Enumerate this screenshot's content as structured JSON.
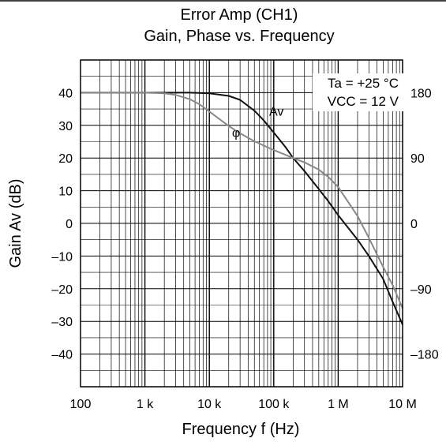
{
  "chart_data": {
    "type": "line",
    "title": "Error Amp (CH1)",
    "subtitle": "Gain, Phase vs. Frequency",
    "xlabel": "Frequency f (Hz)",
    "ylabel": "Gain Av (dB)",
    "y2label": "",
    "x_scale": "log",
    "xlim": [
      100,
      10000000
    ],
    "ylim": [
      -50,
      50
    ],
    "y2lim": [
      -225,
      225
    ],
    "grid": true,
    "x_ticks": [
      {
        "value": 100,
        "label": "100"
      },
      {
        "value": 1000,
        "label": "1 k"
      },
      {
        "value": 10000,
        "label": "10 k"
      },
      {
        "value": 100000,
        "label": "100 k"
      },
      {
        "value": 1000000,
        "label": "1 M"
      },
      {
        "value": 10000000,
        "label": "10 M"
      }
    ],
    "y_ticks": [
      {
        "value": 40,
        "label": "40"
      },
      {
        "value": 30,
        "label": "30"
      },
      {
        "value": 20,
        "label": "20"
      },
      {
        "value": 10,
        "label": "10"
      },
      {
        "value": 0,
        "label": "0"
      },
      {
        "value": -10,
        "label": "–10"
      },
      {
        "value": -20,
        "label": "–20"
      },
      {
        "value": -30,
        "label": "–30"
      },
      {
        "value": -40,
        "label": "–40"
      }
    ],
    "y2_ticks": [
      {
        "value": 180,
        "label": "180"
      },
      {
        "value": 90,
        "label": "90"
      },
      {
        "value": 0,
        "label": "0"
      },
      {
        "value": -90,
        "label": "–90"
      },
      {
        "value": -180,
        "label": "–180"
      }
    ],
    "conditions": [
      "Ta = +25 °C",
      "VCC = 12 V"
    ],
    "series": [
      {
        "name": "Av",
        "axis": "left",
        "color": "#111111",
        "label_at": {
          "x": 110000,
          "y": 33
        },
        "points": [
          {
            "x": 100,
            "y": 40
          },
          {
            "x": 1000,
            "y": 40
          },
          {
            "x": 5000,
            "y": 40
          },
          {
            "x": 10000,
            "y": 39.8
          },
          {
            "x": 20000,
            "y": 39
          },
          {
            "x": 30000,
            "y": 37.8
          },
          {
            "x": 50000,
            "y": 34.5
          },
          {
            "x": 70000,
            "y": 31.5
          },
          {
            "x": 100000,
            "y": 27.8
          },
          {
            "x": 150000,
            "y": 23.5
          },
          {
            "x": 200000,
            "y": 20
          },
          {
            "x": 300000,
            "y": 16
          },
          {
            "x": 500000,
            "y": 10.5
          },
          {
            "x": 700000,
            "y": 6.8
          },
          {
            "x": 1000000,
            "y": 2.5
          },
          {
            "x": 2000000,
            "y": -5
          },
          {
            "x": 3000000,
            "y": -10
          },
          {
            "x": 5000000,
            "y": -17
          },
          {
            "x": 7000000,
            "y": -24
          },
          {
            "x": 10000000,
            "y": -31
          }
        ]
      },
      {
        "name": "φ",
        "axis": "right",
        "color": "#888888",
        "label_at": {
          "x": 26000,
          "y": 26.5
        },
        "points": [
          {
            "x": 100,
            "y": 180
          },
          {
            "x": 1000,
            "y": 180
          },
          {
            "x": 2000,
            "y": 179
          },
          {
            "x": 3000,
            "y": 177
          },
          {
            "x": 5000,
            "y": 171
          },
          {
            "x": 7000,
            "y": 164
          },
          {
            "x": 10000,
            "y": 154
          },
          {
            "x": 20000,
            "y": 134
          },
          {
            "x": 30000,
            "y": 124
          },
          {
            "x": 50000,
            "y": 113
          },
          {
            "x": 100000,
            "y": 101
          },
          {
            "x": 200000,
            "y": 90
          },
          {
            "x": 300000,
            "y": 84
          },
          {
            "x": 500000,
            "y": 74
          },
          {
            "x": 700000,
            "y": 64
          },
          {
            "x": 1000000,
            "y": 50
          },
          {
            "x": 2000000,
            "y": 10
          },
          {
            "x": 3000000,
            "y": -20
          },
          {
            "x": 5000000,
            "y": -60
          },
          {
            "x": 7000000,
            "y": -85
          },
          {
            "x": 10000000,
            "y": -117
          }
        ]
      }
    ]
  }
}
